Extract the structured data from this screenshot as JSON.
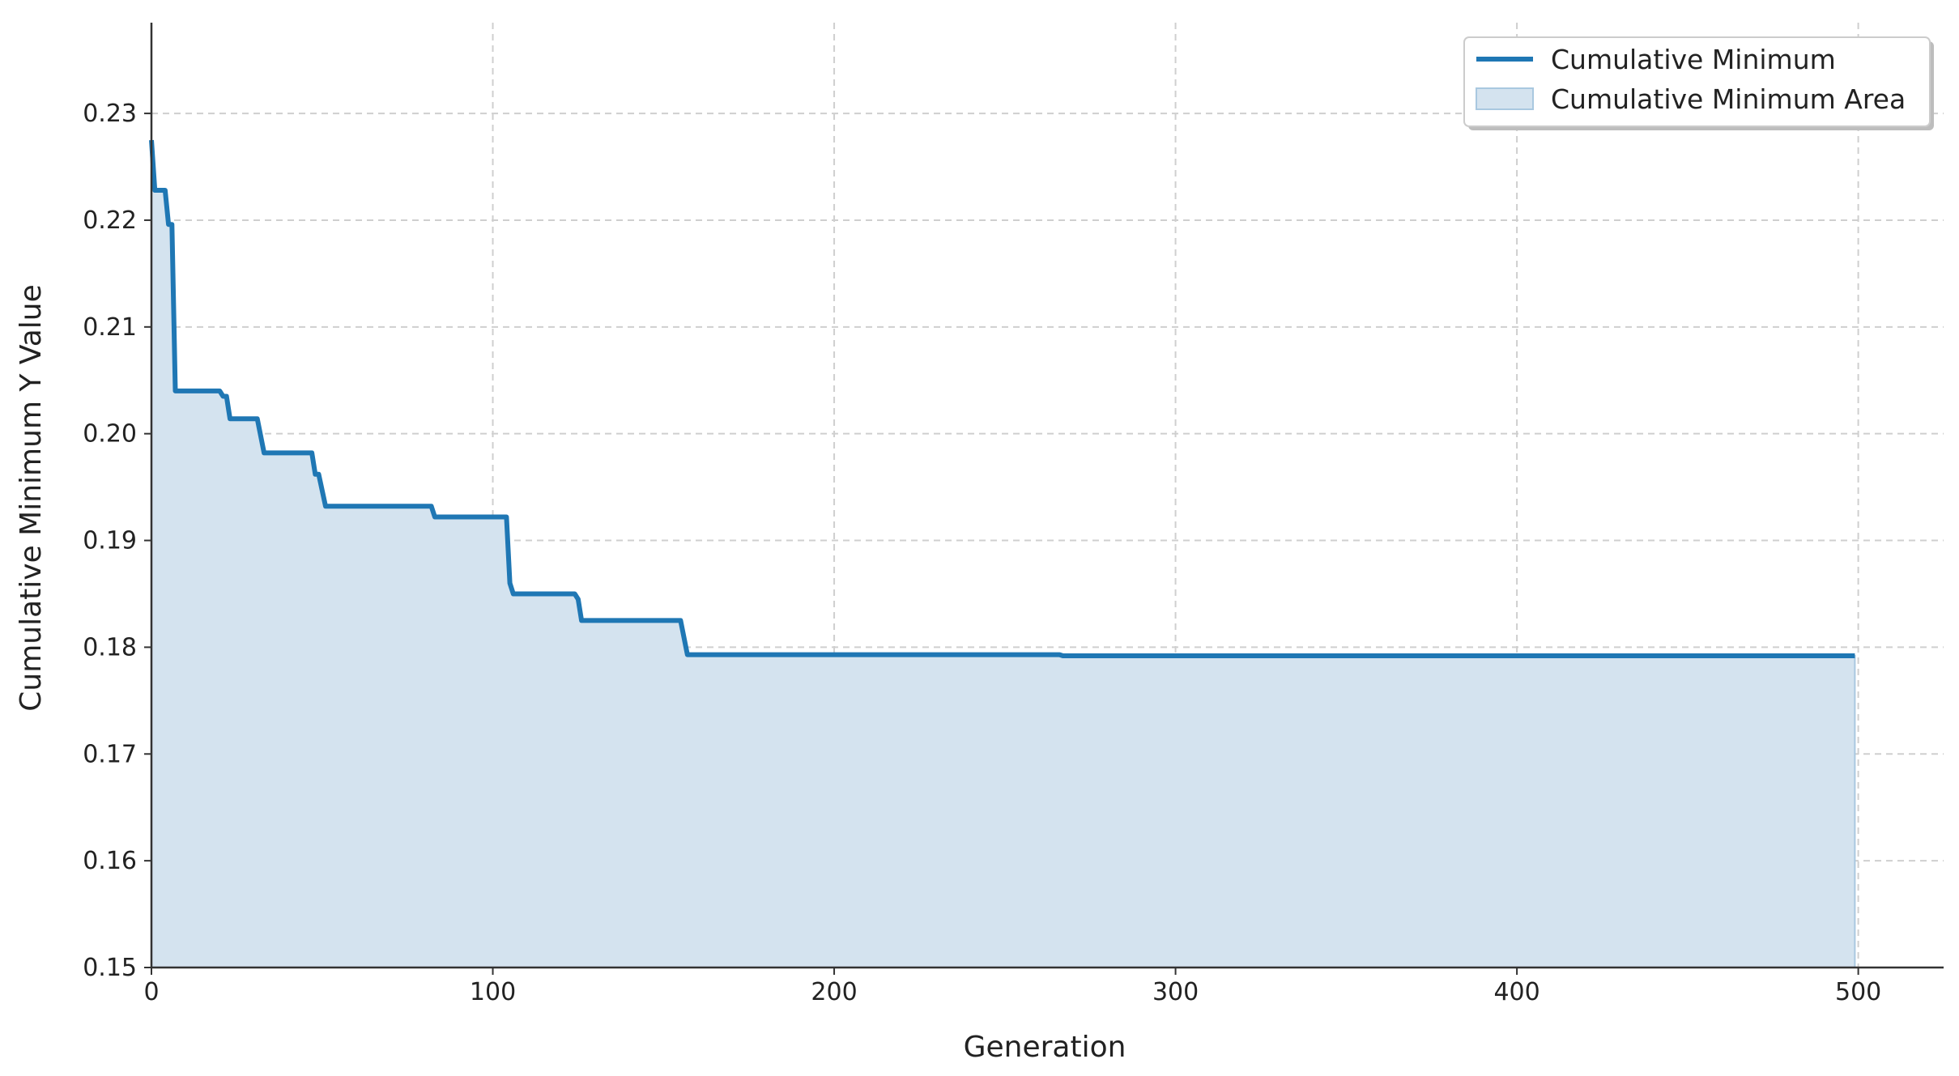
{
  "chart_data": {
    "type": "area",
    "title": "",
    "xlabel": "Generation",
    "ylabel": "Cumulative Minimum Y Value",
    "xlim": [
      0,
      525
    ],
    "ylim": [
      0.15,
      0.2385
    ],
    "xticks": [
      0,
      100,
      200,
      300,
      400,
      500
    ],
    "yticks": [
      0.15,
      0.16,
      0.17,
      0.18,
      0.19,
      0.2,
      0.21,
      0.22,
      0.23
    ],
    "xtick_labels": [
      "0",
      "100",
      "200",
      "300",
      "400",
      "500"
    ],
    "ytick_labels": [
      "0.15",
      "0.16",
      "0.17",
      "0.18",
      "0.19",
      "0.20",
      "0.21",
      "0.22",
      "0.23"
    ],
    "grid": true,
    "legend_position": "top-right",
    "series": [
      {
        "name": "Cumulative Minimum",
        "kind": "line",
        "color": "#1f77b4",
        "points": [
          [
            0,
            0.2275
          ],
          [
            1,
            0.2228
          ],
          [
            4,
            0.2228
          ],
          [
            5,
            0.2196
          ],
          [
            6,
            0.2196
          ],
          [
            7,
            0.204
          ],
          [
            20,
            0.204
          ],
          [
            21,
            0.2035
          ],
          [
            22,
            0.2035
          ],
          [
            23,
            0.2014
          ],
          [
            31,
            0.2014
          ],
          [
            33,
            0.1982
          ],
          [
            47,
            0.1982
          ],
          [
            48,
            0.1962
          ],
          [
            49,
            0.1962
          ],
          [
            51,
            0.1932
          ],
          [
            82,
            0.1932
          ],
          [
            83,
            0.1922
          ],
          [
            104,
            0.1922
          ],
          [
            105,
            0.186
          ],
          [
            106,
            0.185
          ],
          [
            124,
            0.185
          ],
          [
            125,
            0.1845
          ],
          [
            126,
            0.1825
          ],
          [
            155,
            0.1825
          ],
          [
            157,
            0.1793
          ],
          [
            266,
            0.1793
          ],
          [
            267,
            0.1792
          ],
          [
            499,
            0.1792
          ]
        ]
      },
      {
        "name": "Cumulative Minimum Area",
        "kind": "area",
        "color": "#d4e3ef"
      }
    ]
  },
  "legend": {
    "line_label": "Cumulative Minimum",
    "area_label": "Cumulative Minimum Area"
  }
}
